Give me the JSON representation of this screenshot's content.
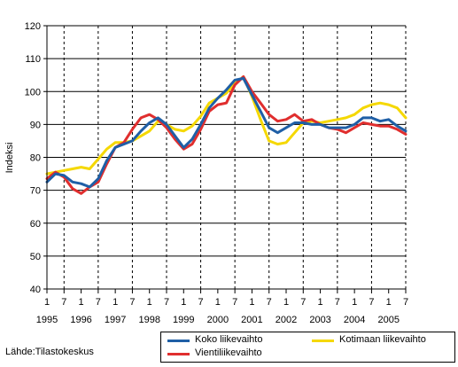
{
  "source_note": "Lähde:Tilastokeskus",
  "chart_data": {
    "type": "line",
    "ylabel": "Indeksi",
    "ylim": [
      40,
      120
    ],
    "yticks": [
      40,
      50,
      60,
      70,
      80,
      90,
      100,
      110,
      120
    ],
    "grid": "dashed vertical at July, solid horizontal at every 10",
    "x_start": "1995-01",
    "x_end": "2005-07",
    "month_tick_labels": [
      "1",
      "7",
      "1",
      "7",
      "1",
      "7",
      "1",
      "7",
      "1",
      "7",
      "1",
      "7",
      "1",
      "7",
      "1",
      "7",
      "1",
      "7",
      "1",
      "7",
      "1",
      "7"
    ],
    "year_labels": [
      "1995",
      "1996",
      "1997",
      "1998",
      "1999",
      "2000",
      "2001",
      "2002",
      "2003",
      "2004",
      "2005"
    ],
    "legend_position": "bottom-right",
    "series": [
      {
        "name": "Koko liikevaihto",
        "color": "#1f5fa6",
        "x": [
          "1995-01",
          "1995-04",
          "1995-07",
          "1995-10",
          "1996-01",
          "1996-04",
          "1996-07",
          "1996-10",
          "1997-01",
          "1997-04",
          "1997-07",
          "1997-10",
          "1998-01",
          "1998-04",
          "1998-07",
          "1998-10",
          "1999-01",
          "1999-04",
          "1999-07",
          "1999-10",
          "2000-01",
          "2000-04",
          "2000-07",
          "2000-10",
          "2001-01",
          "2001-04",
          "2001-07",
          "2001-10",
          "2002-01",
          "2002-04",
          "2002-07",
          "2002-10",
          "2003-01",
          "2003-04",
          "2003-07",
          "2003-10",
          "2004-01",
          "2004-04",
          "2004-07",
          "2004-10",
          "2005-01",
          "2005-04",
          "2005-07"
        ],
        "values": [
          72.5,
          75.0,
          74.5,
          72.5,
          72.0,
          71.0,
          73.5,
          79.0,
          83.0,
          84.0,
          85.0,
          88.0,
          90.5,
          92.0,
          90.0,
          86.5,
          83.0,
          85.5,
          90.0,
          95.0,
          98.0,
          100.5,
          103.5,
          104.0,
          99.0,
          94.0,
          89.0,
          87.5,
          89.0,
          90.5,
          90.5,
          90.0,
          90.0,
          89.0,
          89.0,
          89.0,
          90.0,
          92.0,
          92.0,
          91.0,
          91.5,
          89.5,
          88.0
        ]
      },
      {
        "name": "Vientiliikevaihto",
        "color": "#e02e2e",
        "x": [
          "1995-01",
          "1995-04",
          "1995-07",
          "1995-10",
          "1996-01",
          "1996-04",
          "1996-07",
          "1996-10",
          "1997-01",
          "1997-04",
          "1997-07",
          "1997-10",
          "1998-01",
          "1998-04",
          "1998-07",
          "1998-10",
          "1999-01",
          "1999-04",
          "1999-07",
          "1999-10",
          "2000-01",
          "2000-04",
          "2000-07",
          "2000-10",
          "2001-01",
          "2001-04",
          "2001-07",
          "2001-10",
          "2002-01",
          "2002-04",
          "2002-07",
          "2002-10",
          "2003-01",
          "2003-04",
          "2003-07",
          "2003-10",
          "2004-01",
          "2004-04",
          "2004-07",
          "2004-10",
          "2005-01",
          "2005-04",
          "2005-07"
        ],
        "values": [
          73.5,
          75.5,
          74.0,
          70.5,
          69.0,
          71.0,
          72.5,
          78.0,
          83.0,
          84.5,
          88.5,
          92.0,
          93.0,
          91.5,
          89.0,
          85.5,
          82.5,
          84.0,
          88.5,
          94.0,
          96.0,
          96.5,
          102.0,
          104.5,
          100.0,
          96.5,
          93.0,
          91.0,
          91.5,
          93.0,
          91.0,
          91.5,
          90.0,
          89.0,
          88.5,
          87.5,
          89.0,
          90.5,
          90.0,
          89.5,
          89.5,
          88.5,
          87.0
        ]
      },
      {
        "name": "Kotimaan liikevaihto",
        "color": "#f5d800",
        "x": [
          "1995-01",
          "1995-04",
          "1995-07",
          "1995-10",
          "1996-01",
          "1996-04",
          "1996-07",
          "1996-10",
          "1997-01",
          "1997-04",
          "1997-07",
          "1997-10",
          "1998-01",
          "1998-04",
          "1998-07",
          "1998-10",
          "1999-01",
          "1999-04",
          "1999-07",
          "1999-10",
          "2000-01",
          "2000-04",
          "2000-07",
          "2000-10",
          "2001-01",
          "2001-04",
          "2001-07",
          "2001-10",
          "2002-01",
          "2002-04",
          "2002-07",
          "2002-10",
          "2003-01",
          "2003-04",
          "2003-07",
          "2003-10",
          "2004-01",
          "2004-04",
          "2004-07",
          "2004-10",
          "2005-01",
          "2005-04",
          "2005-07"
        ],
        "values": [
          75.0,
          75.5,
          76.0,
          76.5,
          77.0,
          76.5,
          79.5,
          82.5,
          84.5,
          84.5,
          85.0,
          86.5,
          88.0,
          91.0,
          90.0,
          88.5,
          88.0,
          89.5,
          92.5,
          96.5,
          98.0,
          99.5,
          102.5,
          104.5,
          98.5,
          91.5,
          85.0,
          84.0,
          84.5,
          87.5,
          90.5,
          91.0,
          90.5,
          91.0,
          91.5,
          92.0,
          93.0,
          95.0,
          96.0,
          96.5,
          96.0,
          95.0,
          92.0
        ]
      }
    ]
  }
}
